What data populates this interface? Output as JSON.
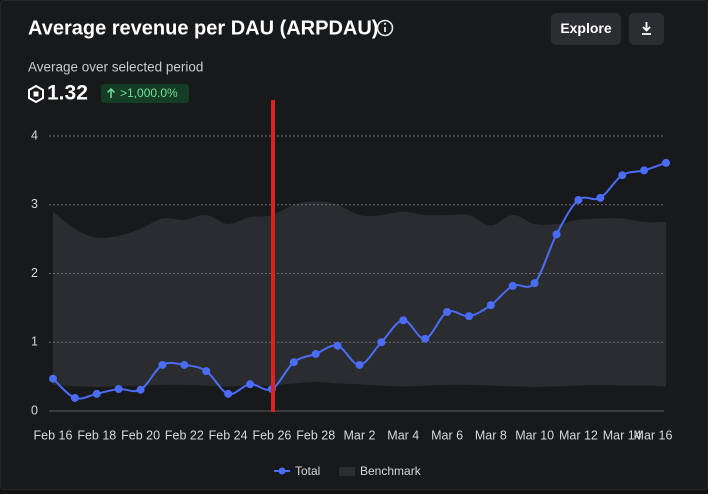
{
  "chart_data": {
    "type": "line",
    "title": "Average revenue per DAU (ARPDAU)",
    "subtitle": "Average over selected period",
    "summary_value": 1.32,
    "change_label": ">1,000.0%",
    "button_label": "Explore",
    "categories": [
      "Feb 16",
      null,
      "Feb 18",
      null,
      "Feb 20",
      null,
      "Feb 22",
      null,
      "Feb 24",
      null,
      "Feb 26",
      null,
      "Feb 28",
      null,
      "Mar 2",
      null,
      "Mar 4",
      null,
      "Mar 6",
      null,
      "Mar 8",
      null,
      "Mar 10",
      null,
      "Mar 12",
      null,
      "Mar 14",
      null,
      "Mar 16"
    ],
    "series": [
      {
        "name": "Total",
        "color": "#4a6cf7",
        "values": [
          0.47,
          0.19,
          0.25,
          0.32,
          0.31,
          0.67,
          0.67,
          0.58,
          0.25,
          0.39,
          0.32,
          0.71,
          0.83,
          0.95,
          0.67,
          1.0,
          1.32,
          1.05,
          1.44,
          1.38,
          1.54,
          1.82,
          1.86,
          2.57,
          3.07,
          3.1,
          3.43,
          3.5,
          3.61
        ]
      },
      {
        "name": "Benchmark",
        "color": "#2c2d31",
        "values": [
          2.9,
          2.65,
          2.52,
          2.55,
          2.65,
          2.8,
          2.78,
          2.85,
          2.72,
          2.82,
          2.85,
          3.0,
          3.05,
          3.0,
          2.85,
          2.85,
          2.9,
          2.85,
          2.85,
          2.85,
          2.7,
          2.85,
          2.72,
          2.72,
          2.78,
          2.8,
          2.8,
          2.75,
          2.75
        ],
        "lower": [
          0.38,
          0.36,
          0.35,
          0.36,
          0.37,
          0.38,
          0.38,
          0.37,
          0.36,
          0.37,
          0.37,
          0.4,
          0.42,
          0.4,
          0.39,
          0.37,
          0.36,
          0.37,
          0.38,
          0.38,
          0.37,
          0.36,
          0.35,
          0.36,
          0.37,
          0.38,
          0.37,
          0.37,
          0.36
        ]
      }
    ],
    "ylim": [
      0,
      4
    ],
    "yticks": [
      0,
      1,
      2,
      3,
      4
    ],
    "grid": true,
    "legend": "bottom"
  }
}
